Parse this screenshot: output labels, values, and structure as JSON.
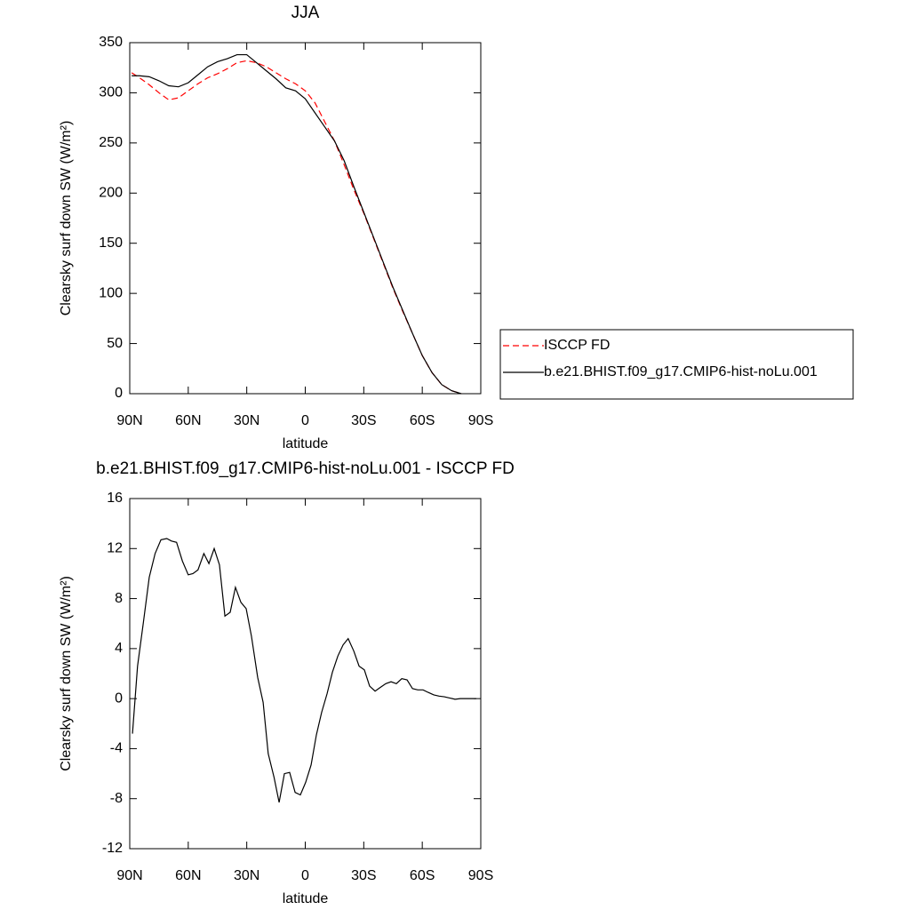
{
  "chart_data": [
    {
      "type": "line",
      "title": "JJA",
      "xlabel": "latitude",
      "ylabel": "Clearsky surf down SW (W/m²)",
      "xlim": [
        90,
        -90
      ],
      "xticks": [
        {
          "value": 90,
          "label": "90N"
        },
        {
          "value": 60,
          "label": "60N"
        },
        {
          "value": 30,
          "label": "30N"
        },
        0,
        {
          "value": -30,
          "label": "30S"
        },
        {
          "value": -60,
          "label": "60S"
        },
        {
          "value": -90,
          "label": "90S"
        }
      ],
      "ylim": [
        0,
        350
      ],
      "yticks": [
        0,
        50,
        100,
        150,
        200,
        250,
        300,
        350
      ],
      "legend": "right",
      "x": [
        89,
        85,
        80,
        75,
        70,
        65,
        60,
        55,
        50,
        45,
        40,
        35,
        30,
        25,
        20,
        15,
        10,
        5,
        0,
        -5,
        -10,
        -15,
        -20,
        -25,
        -30,
        -35,
        -40,
        -45,
        -50,
        -55,
        -60,
        -65,
        -70,
        -75,
        -80
      ],
      "series": [
        {
          "name": "ISCCP FD",
          "color": "#ff0000",
          "dashed": true,
          "values": [
            320,
            315,
            308,
            300,
            293,
            295,
            302,
            309,
            315,
            319,
            324,
            330,
            332,
            330,
            326,
            320,
            314,
            309,
            302,
            290,
            271,
            252,
            228,
            203,
            180,
            155,
            130,
            105,
            82,
            60,
            38,
            21,
            9,
            3,
            0
          ]
        },
        {
          "name": "b.e21.BHIST.f09_g17.CMIP6-hist-noLu.001",
          "color": "#000000",
          "dashed": false,
          "values": [
            317,
            317,
            316,
            312,
            307,
            306,
            310,
            318,
            326,
            331,
            334,
            338,
            338,
            330,
            322,
            314,
            305,
            302,
            294,
            280,
            266,
            252,
            232,
            206,
            181,
            156,
            131,
            106,
            83,
            60,
            38,
            21,
            9,
            3,
            0
          ]
        }
      ]
    },
    {
      "type": "line",
      "title": "b.e21.BHIST.f09_g17.CMIP6-hist-noLu.001 - ISCCP FD",
      "xlabel": "latitude",
      "ylabel": "Clearsky surf down SW (W/m²)",
      "xlim": [
        90,
        -90
      ],
      "xticks": [
        {
          "value": 90,
          "label": "90N"
        },
        {
          "value": 60,
          "label": "60N"
        },
        {
          "value": 30,
          "label": "30N"
        },
        0,
        {
          "value": -30,
          "label": "30S"
        },
        {
          "value": -60,
          "label": "60S"
        },
        {
          "value": -90,
          "label": "90S"
        }
      ],
      "ylim": [
        -12,
        16
      ],
      "yticks": [
        -12,
        -8,
        -4,
        0,
        4,
        8,
        12,
        16
      ],
      "x": [
        88.6,
        86,
        83,
        80,
        77,
        74,
        71,
        68.6,
        66,
        63,
        60,
        57.6,
        55,
        52,
        49.4,
        46.7,
        44,
        41.2,
        38.5,
        35.8,
        33,
        30.3,
        27.6,
        24.4,
        21.6,
        19,
        16,
        13.4,
        10.7,
        8,
        5.2,
        2.5,
        -0.2,
        -3,
        -5.7,
        -8.4,
        -11.2,
        -13.9,
        -16.7,
        -19.4,
        -22,
        -24.9,
        -27.6,
        -30.3,
        -33,
        -35.8,
        -38.5,
        -41.3,
        -44,
        -46.7,
        -49.5,
        -52.2,
        -55,
        -57.7,
        -60.4,
        -63,
        -65.9,
        -68.6,
        -71.3,
        -74,
        -76.8,
        -79.5,
        -82,
        -85,
        -87.7
      ],
      "series": [
        {
          "color": "#000000",
          "dashed": false,
          "values": [
            -2.8,
            2.6,
            6.1,
            9.7,
            11.6,
            12.7,
            12.8,
            12.6,
            12.5,
            11,
            9.9,
            10,
            10.3,
            11.6,
            10.8,
            12,
            10.7,
            6.6,
            6.9,
            8.9,
            7.7,
            7.2,
            5,
            1.7,
            -0.3,
            -4.4,
            -6.3,
            -8.3,
            -6,
            -5.9,
            -7.5,
            -7.7,
            -6.7,
            -5.3,
            -2.9,
            -1.1,
            0.4,
            2.1,
            3.4,
            4.3,
            4.8,
            3.8,
            2.6,
            2.3,
            1,
            0.6,
            0.9,
            1.2,
            1.35,
            1.2,
            1.6,
            1.5,
            0.8,
            0.7,
            0.7,
            0.5,
            0.3,
            0.2,
            0.15,
            0.05,
            -0.05,
            0,
            0,
            0,
            0
          ]
        }
      ]
    }
  ]
}
